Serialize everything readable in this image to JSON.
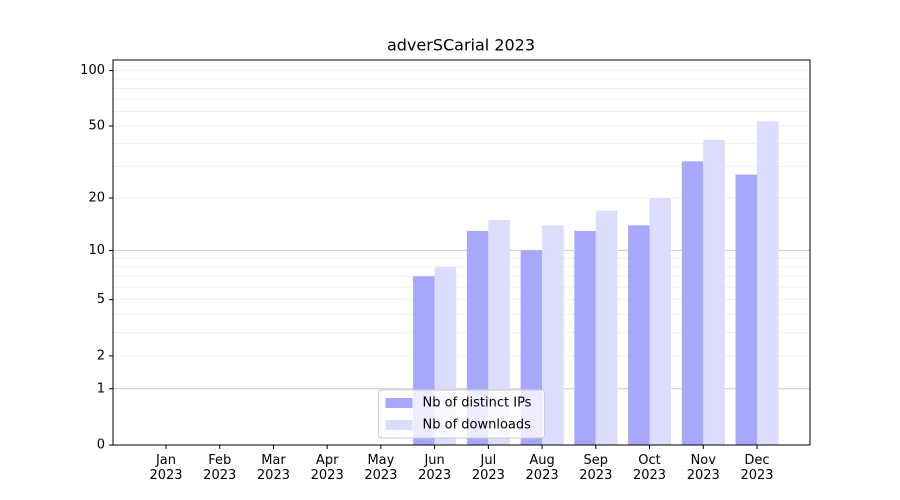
{
  "chart_data": {
    "type": "bar",
    "title": "adverSCarial 2023",
    "scale": "log1p",
    "categories": [
      "Jan\n2023",
      "Feb\n2023",
      "Mar\n2023",
      "Apr\n2023",
      "May\n2023",
      "Jun\n2023",
      "Jul\n2023",
      "Aug\n2023",
      "Sep\n2023",
      "Oct\n2023",
      "Nov\n2023",
      "Dec\n2023"
    ],
    "series": [
      {
        "name": "Nb of distinct IPs",
        "color": "#a7a7fc",
        "values": [
          0,
          0,
          0,
          0,
          0,
          7,
          13,
          10,
          13,
          14,
          32,
          27
        ]
      },
      {
        "name": "Nb of downloads",
        "color": "#dcdcfc",
        "values": [
          0,
          0,
          0,
          0,
          0,
          8,
          15,
          14,
          17,
          20,
          42,
          53
        ]
      }
    ],
    "ylim": [
      0,
      114
    ],
    "yticks": [
      0,
      1,
      2,
      5,
      10,
      20,
      50,
      100
    ],
    "grid": true,
    "major_grid": [
      1,
      10
    ],
    "minor_grid": [
      2,
      3,
      4,
      5,
      6,
      7,
      8,
      9,
      20,
      30,
      40,
      50,
      60,
      70,
      80,
      90,
      100
    ],
    "legend": "lower center"
  }
}
